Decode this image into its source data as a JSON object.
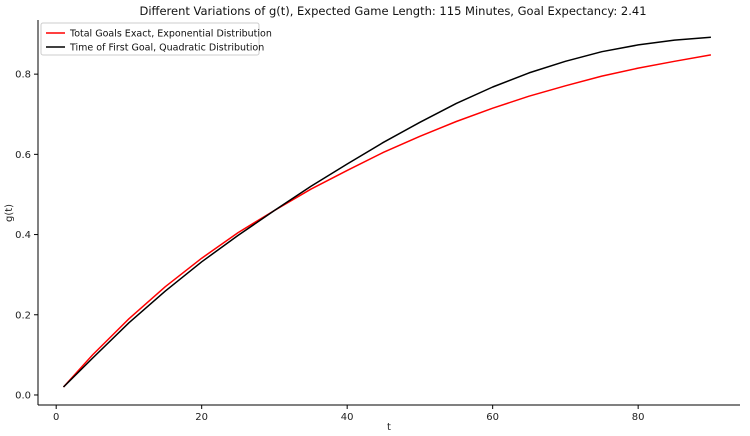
{
  "chart_data": {
    "type": "line",
    "title": "Different Variations of g(t), Expected Game Length: 115 Minutes, Goal Expectancy: 2.41",
    "xlabel": "t",
    "ylabel": "g(t)",
    "xlim": [
      -2.5,
      94
    ],
    "ylim": [
      -0.025,
      0.935
    ],
    "xticks": [
      0,
      20,
      40,
      60,
      80
    ],
    "xtick_labels": [
      "0",
      "20",
      "40",
      "60",
      "80"
    ],
    "yticks": [
      0.0,
      0.2,
      0.4,
      0.6,
      0.8
    ],
    "ytick_labels": [
      "0.0",
      "0.2",
      "0.4",
      "0.6",
      "0.8"
    ],
    "grid": false,
    "legend_position": "top-left",
    "series": [
      {
        "name": "Total Goals Exact, Exponential Distribution",
        "color": "#ff0000",
        "x": [
          1,
          5,
          10,
          15,
          20,
          25,
          30,
          35,
          40,
          45,
          50,
          55,
          60,
          65,
          70,
          75,
          80,
          85,
          90
        ],
        "y": [
          0.02,
          0.1,
          0.19,
          0.27,
          0.341,
          0.405,
          0.46,
          0.513,
          0.56,
          0.605,
          0.645,
          0.682,
          0.715,
          0.745,
          0.771,
          0.795,
          0.815,
          0.832,
          0.848
        ]
      },
      {
        "name": "Time of First Goal, Quadratic Distribution",
        "color": "#000000",
        "x": [
          1,
          5,
          10,
          15,
          20,
          25,
          30,
          35,
          40,
          45,
          50,
          55,
          60,
          65,
          70,
          75,
          80,
          85,
          90
        ],
        "y": [
          0.02,
          0.092,
          0.18,
          0.259,
          0.332,
          0.398,
          0.46,
          0.52,
          0.576,
          0.63,
          0.68,
          0.727,
          0.768,
          0.803,
          0.832,
          0.856,
          0.873,
          0.885,
          0.892
        ]
      }
    ]
  }
}
